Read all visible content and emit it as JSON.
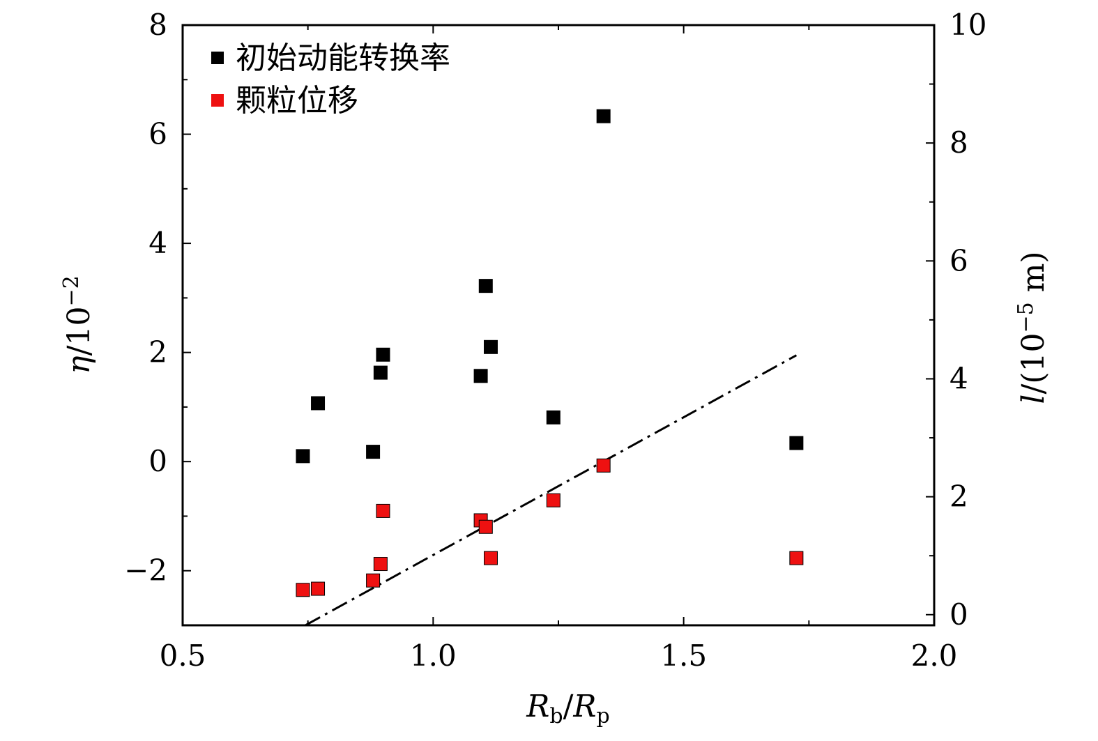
{
  "chart_data": {
    "type": "scatter",
    "title": "",
    "xlabel": "R_b/R_p",
    "ylabel_left": "η/10⁻²",
    "ylabel_right": "l/(10⁻⁵ m)",
    "xlim": [
      0.5,
      2.0
    ],
    "ylim_left": [
      -3,
      8
    ],
    "ylim_right": [
      -0.18,
      10
    ],
    "x_ticks": [
      "0.5",
      "1.0",
      "1.5",
      "2.0"
    ],
    "y_left_ticks": [
      "−2",
      "0",
      "2",
      "4",
      "6",
      "8"
    ],
    "y_right_ticks": [
      "0",
      "2",
      "4",
      "6",
      "8",
      "10"
    ],
    "grid": false,
    "legend_position": "top-left",
    "series": [
      {
        "name": "初始动能转换率",
        "axis": "left",
        "color": "#000000",
        "marker": "square",
        "points": [
          {
            "x": 0.74,
            "y": 0.1
          },
          {
            "x": 0.77,
            "y": 1.07
          },
          {
            "x": 0.88,
            "y": 0.18
          },
          {
            "x": 0.895,
            "y": 1.63
          },
          {
            "x": 0.9,
            "y": 1.96
          },
          {
            "x": 1.095,
            "y": 1.57
          },
          {
            "x": 1.105,
            "y": 3.22
          },
          {
            "x": 1.115,
            "y": 2.1
          },
          {
            "x": 1.24,
            "y": 0.81
          },
          {
            "x": 1.34,
            "y": 6.33
          },
          {
            "x": 1.725,
            "y": 0.34
          }
        ]
      },
      {
        "name": "颗粒位移",
        "axis": "right",
        "color": "#ee1111",
        "marker": "square",
        "points": [
          {
            "x": 0.74,
            "y": 0.42
          },
          {
            "x": 0.77,
            "y": 0.44
          },
          {
            "x": 0.88,
            "y": 0.58
          },
          {
            "x": 0.895,
            "y": 0.86
          },
          {
            "x": 0.9,
            "y": 1.76
          },
          {
            "x": 1.095,
            "y": 1.6
          },
          {
            "x": 1.105,
            "y": 1.49
          },
          {
            "x": 1.115,
            "y": 0.96
          },
          {
            "x": 1.24,
            "y": 1.94
          },
          {
            "x": 1.34,
            "y": 2.53
          },
          {
            "x": 1.725,
            "y": 0.96
          }
        ]
      },
      {
        "type": "line",
        "axis": "right",
        "style": "dash-dot",
        "color": "#000000",
        "points": [
          {
            "x": 0.745,
            "y": -0.18
          },
          {
            "x": 1.725,
            "y": 4.4
          }
        ]
      }
    ]
  }
}
